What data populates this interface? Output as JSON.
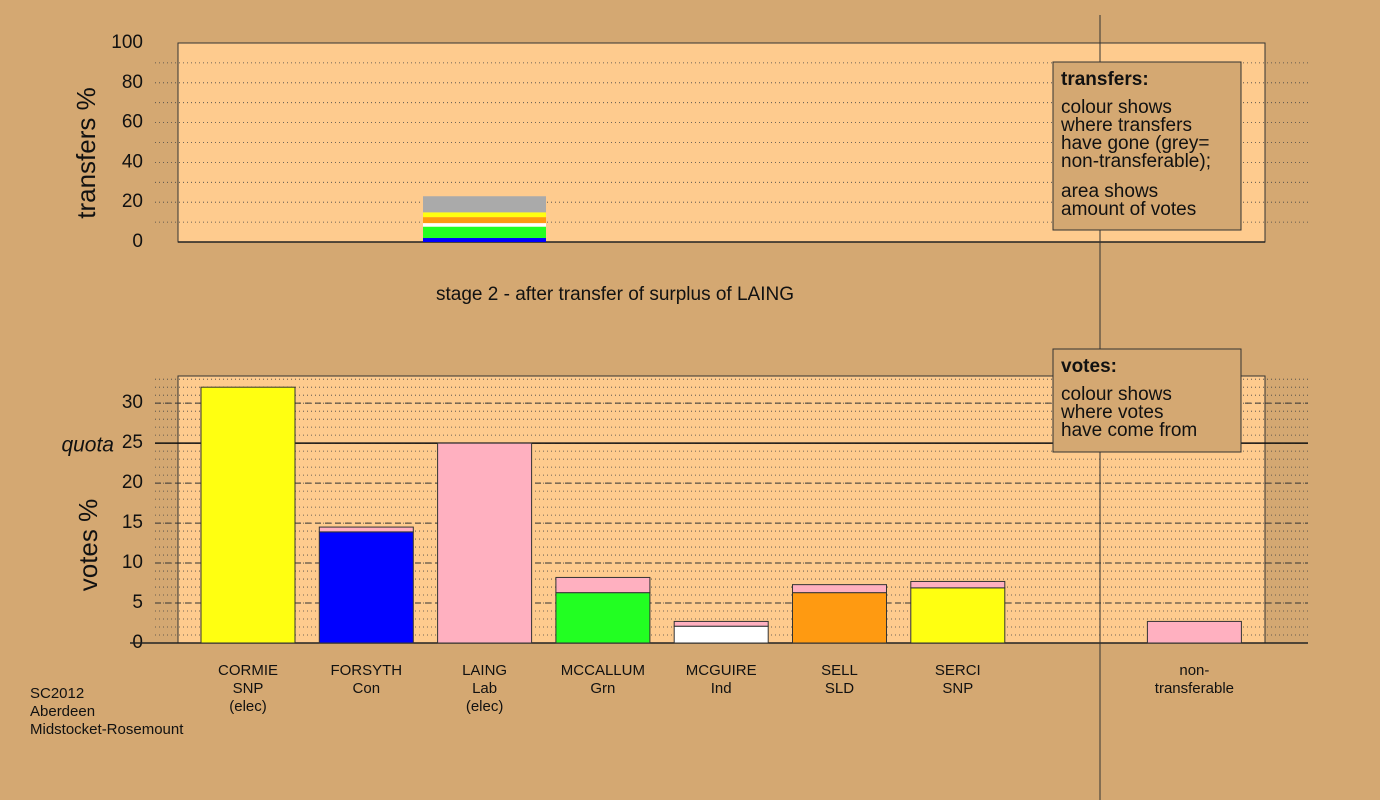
{
  "chart_data": [
    {
      "type": "stacked-bar",
      "ylabel": "transfers %",
      "ylim": [
        0,
        100
      ],
      "yticks": [
        0,
        20,
        40,
        60,
        80,
        100
      ],
      "minor_step": 10,
      "caption": "stage 2 - after transfer of surplus of LAING",
      "segments": [
        {
          "color": "#0000ff",
          "value": 2
        },
        {
          "color": "#22ff22",
          "value": 5.7
        },
        {
          "color": "#ffffff",
          "value": 1.8
        },
        {
          "color": "#ff9a11",
          "value": 3
        },
        {
          "color": "#ffff11",
          "value": 2.4
        },
        {
          "color": "#aaaaaa",
          "value": 8.1
        }
      ],
      "legend_box": {
        "title": "transfers:",
        "paragraphs": [
          [
            "colour shows",
            "where transfers",
            "have gone (grey=",
            "non-transferable);"
          ],
          [
            "area shows",
            "amount of votes"
          ]
        ]
      }
    },
    {
      "type": "stacked-bar",
      "ylabel": "votes %",
      "ylim": [
        0,
        33.4
      ],
      "yticks": [
        0,
        5,
        10,
        15,
        20,
        25,
        30
      ],
      "minor_step": 1,
      "quota": {
        "label": "quota",
        "value": 25
      },
      "categories": [
        [
          "CORMIE",
          "SNP",
          "(elec)"
        ],
        [
          "FORSYTH",
          "Con"
        ],
        [
          "LAING",
          "Lab",
          "(elec)"
        ],
        [
          "MCCALLUM",
          "Grn"
        ],
        [
          "MCGUIRE",
          "Ind"
        ],
        [
          "SELL",
          "SLD"
        ],
        [
          "SERCI",
          "SNP"
        ],
        [
          "non-",
          "transferable"
        ]
      ],
      "stacks": [
        [
          {
            "color": "#ffff11",
            "value": 32
          }
        ],
        [
          {
            "color": "#0000ff",
            "value": 13.9
          },
          {
            "color": "#ffb0c0",
            "value": 0.6
          }
        ],
        [
          {
            "color": "#ffb0c0",
            "value": 25
          }
        ],
        [
          {
            "color": "#22ff22",
            "value": 6.3
          },
          {
            "color": "#ffb0c0",
            "value": 1.9
          }
        ],
        [
          {
            "color": "#ffffff",
            "value": 2.1
          },
          {
            "color": "#ffb0c0",
            "value": 0.6
          }
        ],
        [
          {
            "color": "#ff9a11",
            "value": 6.3
          },
          {
            "color": "#ffb0c0",
            "value": 1.0
          }
        ],
        [
          {
            "color": "#ffff11",
            "value": 6.9
          },
          {
            "color": "#ffb0c0",
            "value": 0.8
          }
        ],
        [
          {
            "color": "#ffb0c0",
            "value": 2.7
          }
        ]
      ],
      "legend_box": {
        "title": "votes:",
        "paragraphs": [
          [
            "colour shows",
            "where votes",
            "have come from"
          ]
        ]
      }
    }
  ],
  "footer": [
    "SC2012",
    "Aberdeen",
    "Midstocket-Rosemount"
  ]
}
